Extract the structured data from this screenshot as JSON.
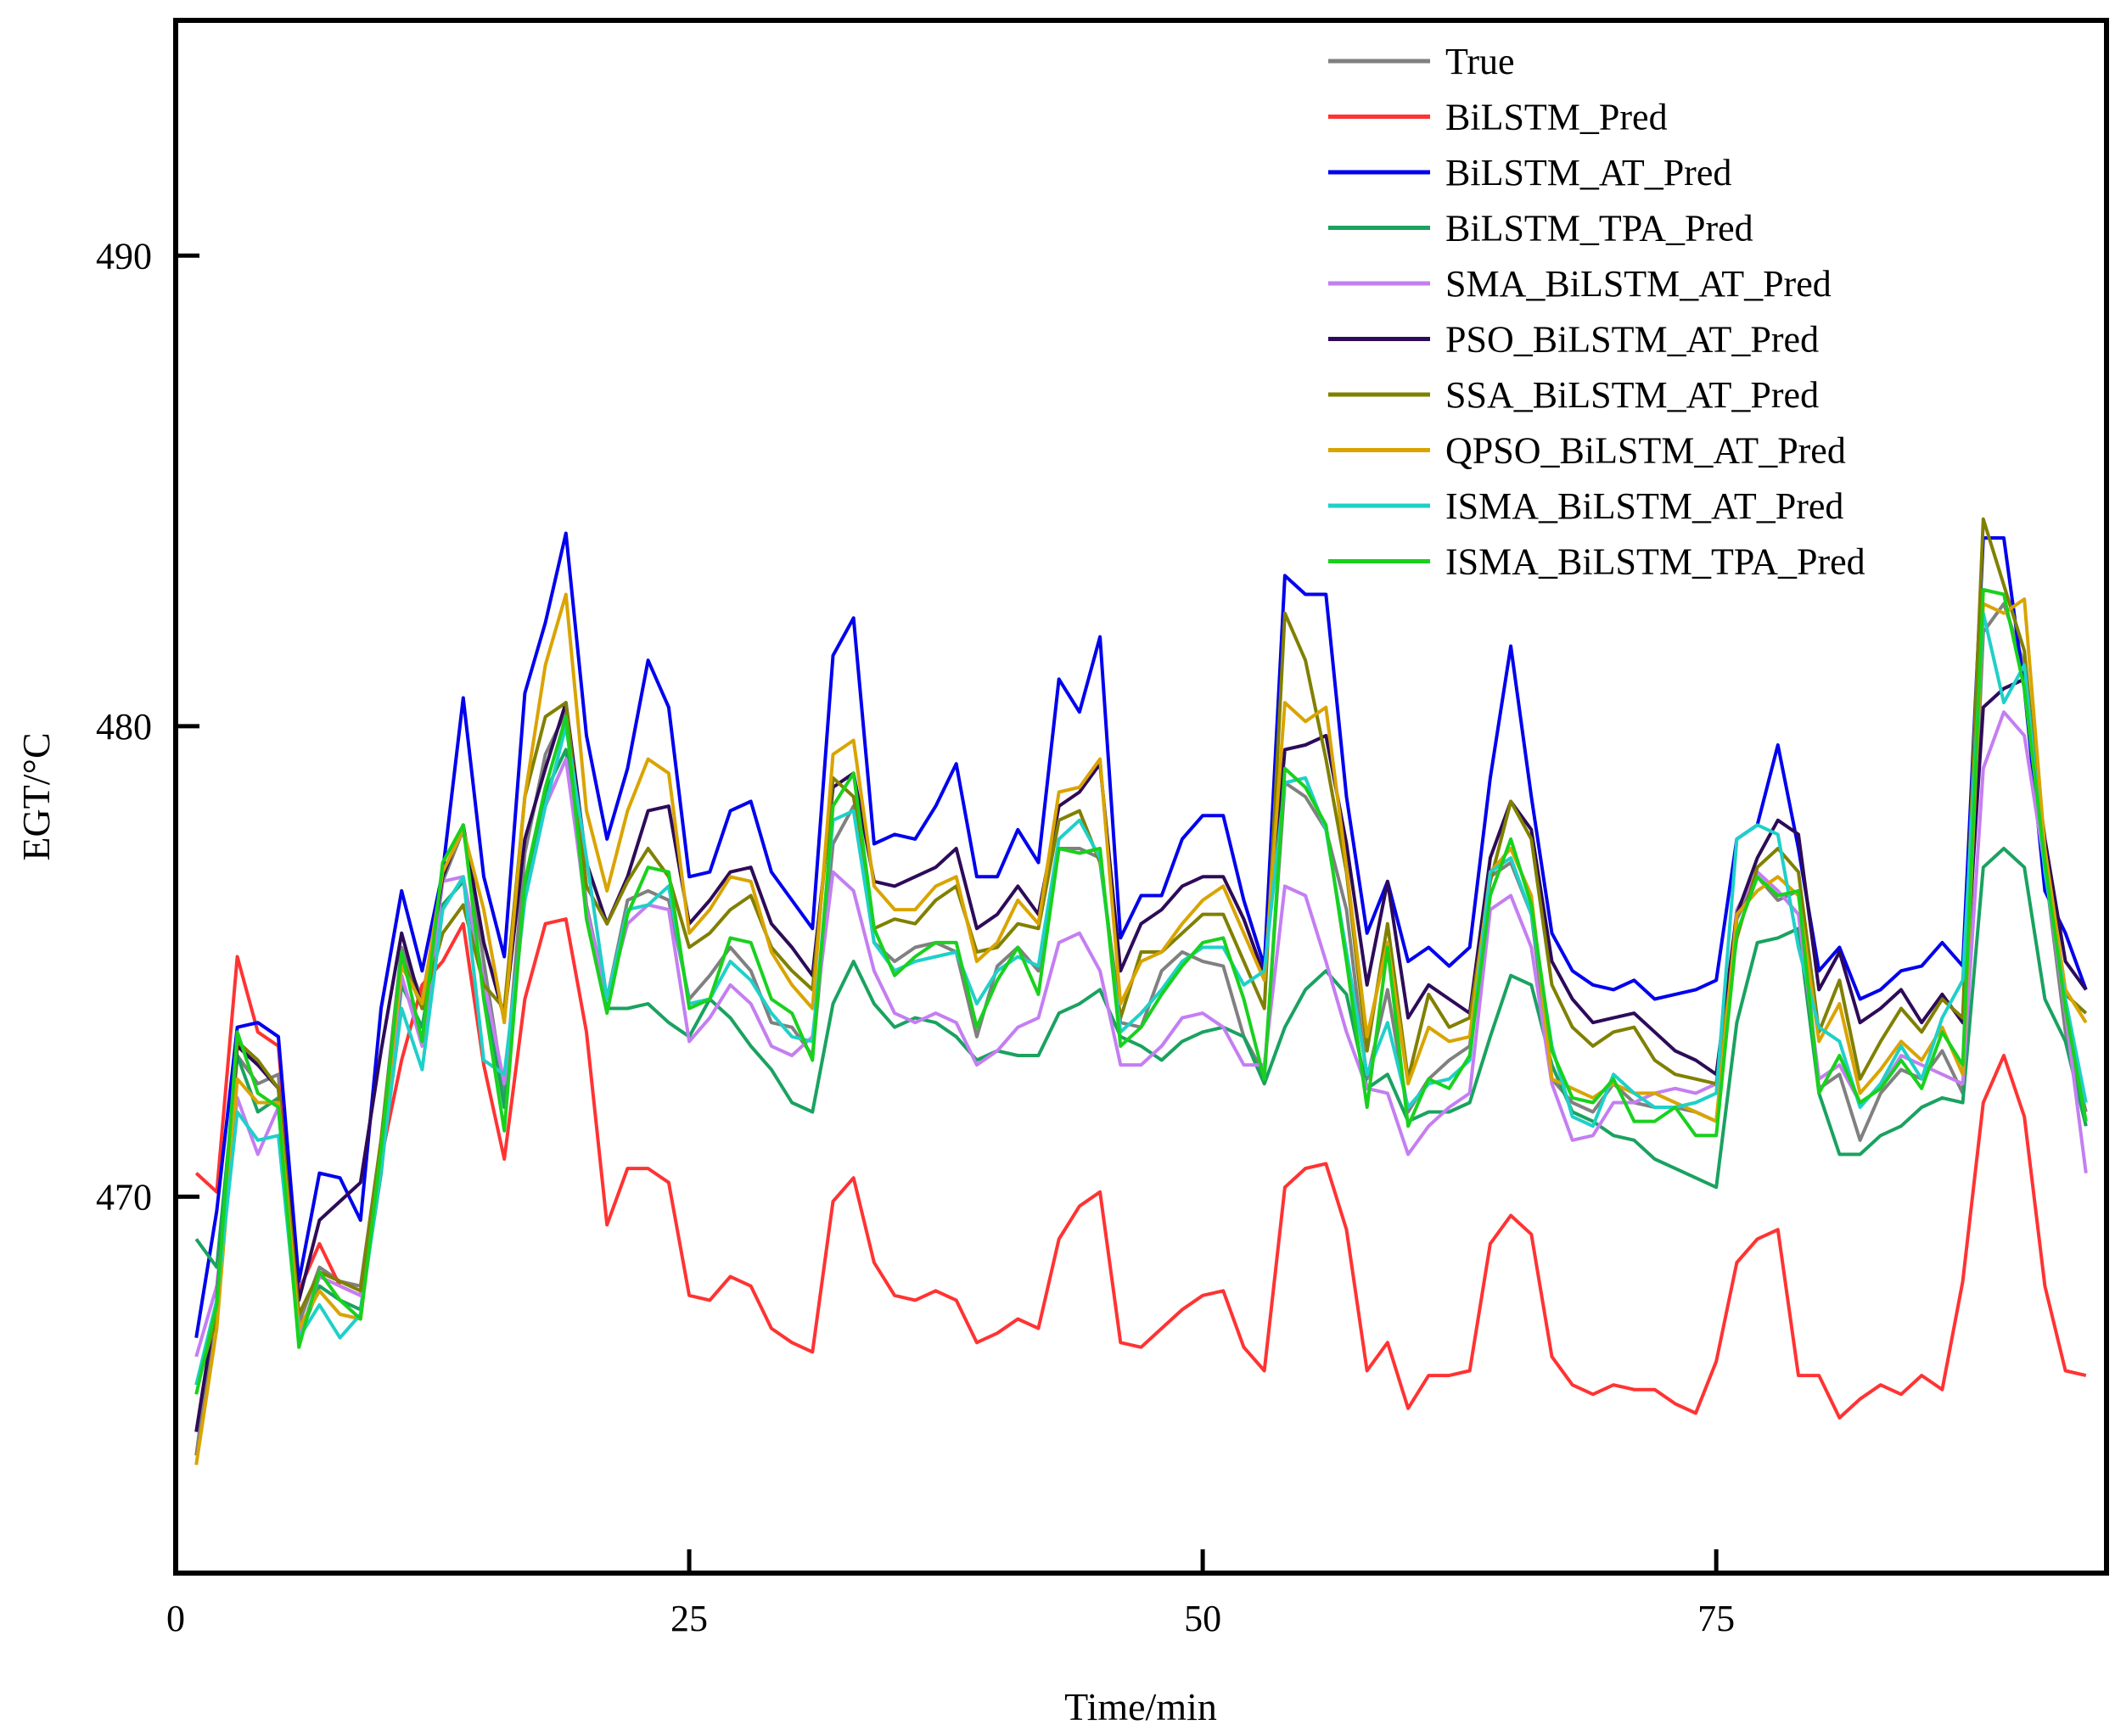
{
  "chart_data": {
    "type": "line",
    "title": "",
    "xlabel": "Time/min",
    "ylabel": "EGT/°C",
    "xlim": [
      0,
      94
    ],
    "ylim": [
      462,
      495
    ],
    "xticks": [
      0,
      25,
      50,
      75
    ],
    "yticks": [
      470,
      480,
      490
    ],
    "legend_position": "top-right",
    "x": [
      1,
      2,
      3,
      4,
      5,
      6,
      7,
      8,
      9,
      10,
      11,
      12,
      13,
      14,
      15,
      16,
      17,
      18,
      19,
      20,
      21,
      22,
      23,
      24,
      25,
      26,
      27,
      28,
      29,
      30,
      31,
      32,
      33,
      34,
      35,
      36,
      37,
      38,
      39,
      40,
      41,
      42,
      43,
      44,
      45,
      46,
      47,
      48,
      49,
      50,
      51,
      52,
      53,
      54,
      55,
      56,
      57,
      58,
      59,
      60,
      61,
      62,
      63,
      64,
      65,
      66,
      67,
      68,
      69,
      70,
      71,
      72,
      73,
      74,
      75,
      76,
      77,
      78,
      79,
      80,
      81,
      82,
      83,
      84,
      85,
      86,
      87,
      88,
      89,
      90,
      91,
      92,
      93
    ],
    "series": [
      {
        "name": "True",
        "color": "#808080",
        "values": [
          464.5,
          467.8,
          473.0,
          472.4,
          472.6,
          467.3,
          468.5,
          468.2,
          468.1,
          471.2,
          475.3,
          474.2,
          476.7,
          477.8,
          475.0,
          472.2,
          477.3,
          479.4,
          480.3,
          476.2,
          474.2,
          476.3,
          476.5,
          476.3,
          474.2,
          474.7,
          475.3,
          474.8,
          473.7,
          473.6,
          473.0,
          477.5,
          478.3,
          475.4,
          475.0,
          475.3,
          475.4,
          475.2,
          473.4,
          474.9,
          475.3,
          474.8,
          477.4,
          477.4,
          477.2,
          473.7,
          473.6,
          474.8,
          475.2,
          475.0,
          474.9,
          473.4,
          472.6,
          478.8,
          478.5,
          477.8,
          476.1,
          472.5,
          474.4,
          471.8,
          472.5,
          472.9,
          473.2,
          476.8,
          477.1,
          476.0,
          472.5,
          472.0,
          471.8,
          472.4,
          472.0,
          471.9,
          471.9,
          471.8,
          471.6,
          475.9,
          476.8,
          476.3,
          476.5,
          472.3,
          472.6,
          471.2,
          472.2,
          472.7,
          472.5,
          473.1,
          472.2,
          482.0,
          482.6,
          481.3,
          477.0,
          473.5,
          471.8
        ]
      },
      {
        "name": "BiLSTM_Pred",
        "color": "#ff3333",
        "values": [
          470.5,
          470.1,
          475.1,
          473.5,
          473.2,
          468.0,
          469.0,
          468.1,
          467.9,
          470.8,
          472.9,
          474.5,
          475.0,
          475.8,
          472.8,
          470.8,
          474.2,
          475.8,
          475.9,
          473.5,
          469.4,
          470.6,
          470.6,
          470.3,
          467.9,
          467.8,
          468.3,
          468.1,
          467.2,
          466.9,
          466.7,
          469.9,
          470.4,
          468.6,
          467.9,
          467.8,
          468.0,
          467.8,
          466.9,
          467.1,
          467.4,
          467.2,
          469.1,
          469.8,
          470.1,
          466.9,
          466.8,
          467.2,
          467.6,
          467.9,
          468.0,
          466.8,
          466.3,
          470.2,
          470.6,
          470.7,
          469.3,
          466.3,
          466.9,
          465.5,
          466.2,
          466.2,
          466.3,
          469.0,
          469.6,
          469.2,
          466.6,
          466.0,
          465.8,
          466.0,
          465.9,
          465.9,
          465.6,
          465.4,
          466.5,
          468.6,
          469.1,
          469.3,
          466.2,
          466.2,
          465.3,
          465.7,
          466.0,
          465.8,
          466.2,
          465.9,
          468.2,
          472.0,
          473.0,
          471.7,
          468.1,
          466.3,
          466.2
        ]
      },
      {
        "name": "BiLSTM_AT_Pred",
        "color": "#0000ee",
        "values": [
          467.0,
          469.7,
          473.6,
          473.7,
          473.4,
          468.2,
          470.5,
          470.4,
          469.5,
          474.0,
          476.5,
          474.8,
          476.9,
          480.6,
          476.8,
          475.1,
          480.7,
          482.2,
          484.1,
          479.8,
          477.6,
          479.1,
          481.4,
          480.4,
          476.8,
          476.9,
          478.2,
          478.4,
          476.9,
          476.3,
          475.7,
          481.5,
          482.3,
          477.5,
          477.7,
          477.6,
          478.3,
          479.2,
          476.8,
          476.8,
          477.8,
          477.1,
          481.0,
          480.3,
          481.9,
          475.5,
          476.4,
          476.4,
          477.6,
          478.1,
          478.1,
          476.3,
          474.9,
          483.2,
          482.8,
          482.8,
          478.5,
          475.6,
          476.7,
          475.0,
          475.3,
          474.9,
          475.3,
          478.9,
          481.7,
          478.5,
          475.6,
          474.8,
          474.5,
          474.4,
          474.6,
          474.2,
          474.3,
          474.4,
          474.6,
          477.6,
          477.9,
          479.6,
          477.4,
          474.8,
          475.3,
          474.2,
          474.4,
          474.8,
          474.9,
          475.4,
          474.9,
          484.0,
          484.0,
          480.8,
          476.5,
          475.6,
          474.4
        ]
      },
      {
        "name": "BiLSTM_TPA_Pred",
        "color": "#1aa260",
        "values": [
          469.1,
          468.5,
          473.0,
          471.8,
          472.1,
          467.0,
          468.1,
          467.8,
          467.6,
          470.5,
          474.5,
          473.6,
          476.2,
          476.7,
          474.6,
          471.9,
          476.5,
          478.6,
          479.5,
          476.0,
          474.0,
          474.0,
          474.1,
          473.7,
          473.4,
          474.2,
          473.8,
          473.2,
          472.7,
          472.0,
          471.8,
          474.1,
          475.0,
          474.1,
          473.6,
          473.8,
          473.7,
          473.4,
          472.9,
          473.1,
          473.0,
          473.0,
          473.9,
          474.1,
          474.4,
          473.4,
          473.2,
          472.9,
          473.3,
          473.5,
          473.6,
          473.4,
          472.4,
          473.6,
          474.4,
          474.8,
          474.3,
          472.3,
          472.6,
          471.6,
          471.8,
          471.8,
          472.0,
          473.4,
          474.7,
          474.5,
          472.8,
          471.8,
          471.6,
          471.3,
          471.2,
          470.8,
          470.6,
          470.4,
          470.2,
          473.7,
          475.4,
          475.5,
          475.7,
          472.2,
          470.9,
          470.9,
          471.3,
          471.5,
          471.9,
          472.1,
          472.0,
          477.0,
          477.4,
          477.0,
          474.2,
          473.3,
          471.5
        ]
      },
      {
        "name": "SMA_BiLSTM_AT_Pred",
        "color": "#c47ef2",
        "values": [
          466.6,
          468.1,
          472.1,
          470.9,
          471.9,
          467.0,
          468.3,
          468.1,
          467.9,
          470.8,
          474.7,
          473.2,
          476.7,
          476.8,
          474.6,
          472.4,
          476.3,
          478.3,
          479.3,
          476.1,
          474.2,
          475.8,
          476.2,
          476.1,
          473.3,
          473.8,
          474.5,
          474.1,
          473.2,
          473.0,
          473.4,
          476.9,
          476.5,
          474.8,
          473.9,
          473.7,
          473.9,
          473.7,
          472.8,
          473.1,
          473.6,
          473.8,
          475.4,
          475.6,
          474.8,
          472.8,
          472.8,
          473.2,
          473.8,
          473.9,
          473.6,
          472.8,
          472.8,
          476.6,
          476.4,
          475.0,
          473.5,
          472.3,
          472.2,
          470.9,
          471.5,
          471.9,
          472.2,
          476.1,
          476.4,
          475.3,
          472.4,
          471.2,
          471.3,
          472.0,
          472.0,
          472.2,
          472.3,
          472.2,
          472.4,
          476.1,
          476.9,
          476.5,
          476.0,
          472.5,
          472.8,
          472.0,
          472.3,
          473.0,
          472.8,
          472.6,
          472.4,
          479.1,
          480.3,
          479.8,
          477.0,
          473.9,
          470.5
        ]
      },
      {
        "name": "PSO_BiLSTM_AT_Pred",
        "color": "#2d0b59",
        "values": [
          465.0,
          467.8,
          473.2,
          472.8,
          472.3,
          467.8,
          469.5,
          469.9,
          470.3,
          473.1,
          475.6,
          474.0,
          476.8,
          477.9,
          475.4,
          473.8,
          477.6,
          479.1,
          480.5,
          477.1,
          475.8,
          476.8,
          478.2,
          478.3,
          475.8,
          476.3,
          476.9,
          477.0,
          475.8,
          475.3,
          474.7,
          478.7,
          479.0,
          476.7,
          476.6,
          476.8,
          477.0,
          477.4,
          475.7,
          476.0,
          476.6,
          476.0,
          478.3,
          478.6,
          479.2,
          474.8,
          475.8,
          476.1,
          476.6,
          476.8,
          476.8,
          475.9,
          474.7,
          479.5,
          479.6,
          479.8,
          477.5,
          474.5,
          476.7,
          473.8,
          474.5,
          474.2,
          473.9,
          477.2,
          478.4,
          477.8,
          475.0,
          474.2,
          473.7,
          473.8,
          473.9,
          473.5,
          473.1,
          472.9,
          472.6,
          476.0,
          477.2,
          478.0,
          477.7,
          474.4,
          475.2,
          473.7,
          474.0,
          474.4,
          473.7,
          474.3,
          473.7,
          480.4,
          480.8,
          481.0,
          477.6,
          475.0,
          474.4
        ]
      },
      {
        "name": "SSA_BiLSTM_AT_Pred",
        "color": "#808000",
        "values": [
          466.0,
          467.4,
          473.3,
          472.9,
          472.3,
          467.5,
          468.4,
          468.2,
          468.0,
          471.2,
          475.1,
          474.0,
          475.6,
          476.2,
          474.5,
          474.0,
          478.5,
          480.2,
          480.5,
          476.6,
          475.8,
          476.7,
          477.4,
          476.8,
          475.3,
          475.6,
          476.1,
          476.4,
          475.3,
          474.8,
          474.4,
          478.9,
          478.5,
          475.7,
          475.9,
          475.8,
          476.3,
          476.6,
          475.2,
          475.3,
          475.8,
          475.7,
          478.0,
          478.2,
          477.1,
          473.8,
          475.2,
          475.2,
          475.6,
          476.0,
          476.0,
          475.0,
          474.0,
          482.4,
          481.4,
          479.3,
          476.9,
          473.1,
          475.8,
          472.5,
          474.3,
          473.6,
          473.8,
          476.7,
          478.4,
          477.6,
          474.5,
          473.6,
          473.2,
          473.5,
          473.6,
          472.9,
          472.6,
          472.5,
          472.4,
          475.5,
          477.0,
          477.4,
          476.9,
          473.5,
          474.6,
          472.5,
          473.3,
          474.0,
          473.5,
          474.2,
          473.8,
          484.4,
          483.0,
          481.6,
          477.1,
          474.3,
          473.9
        ]
      },
      {
        "name": "QPSO_BiLSTM_AT_Pred",
        "color": "#d9a400",
        "values": [
          464.3,
          467.2,
          472.5,
          472.0,
          472.0,
          467.2,
          468.0,
          467.5,
          467.4,
          470.9,
          474.9,
          474.1,
          476.9,
          477.8,
          476.1,
          473.7,
          478.5,
          481.3,
          482.8,
          478.2,
          476.5,
          478.2,
          479.3,
          479.0,
          475.6,
          476.1,
          476.8,
          476.7,
          475.2,
          474.5,
          474.0,
          479.4,
          479.7,
          476.6,
          476.1,
          476.1,
          476.6,
          476.8,
          475.0,
          475.4,
          476.3,
          475.8,
          478.6,
          478.7,
          479.3,
          474.1,
          475.0,
          475.2,
          475.8,
          476.3,
          476.6,
          475.6,
          474.6,
          480.5,
          480.1,
          480.4,
          477.0,
          473.4,
          475.4,
          472.4,
          473.6,
          473.3,
          473.4,
          476.9,
          477.4,
          476.4,
          472.5,
          472.3,
          472.1,
          472.4,
          472.2,
          472.2,
          472.0,
          471.8,
          471.6,
          476.0,
          476.5,
          476.8,
          476.4,
          473.3,
          474.1,
          472.2,
          472.7,
          473.3,
          472.9,
          473.6,
          472.6,
          482.6,
          482.4,
          482.7,
          477.4,
          474.4,
          473.7
        ]
      },
      {
        "name": "ISMA_BiLSTM_AT_Pred",
        "color": "#1fd0c8",
        "values": [
          466.0,
          467.8,
          471.8,
          471.2,
          471.3,
          467.0,
          467.7,
          467.0,
          467.5,
          470.6,
          474.0,
          472.7,
          476.1,
          476.8,
          472.9,
          472.6,
          476.3,
          478.3,
          480.0,
          477.2,
          474.2,
          476.1,
          476.2,
          476.6,
          474.1,
          474.2,
          475.0,
          474.6,
          473.9,
          473.4,
          473.3,
          478.0,
          478.2,
          475.4,
          474.8,
          475.0,
          475.1,
          475.2,
          474.1,
          474.8,
          475.1,
          474.9,
          477.6,
          478.0,
          477.2,
          473.5,
          473.9,
          474.4,
          475.0,
          475.3,
          475.3,
          474.5,
          474.8,
          478.8,
          478.9,
          477.8,
          475.2,
          472.6,
          473.7,
          471.9,
          472.4,
          472.5,
          472.9,
          476.9,
          477.2,
          476.0,
          473.2,
          471.7,
          471.5,
          472.6,
          472.2,
          471.9,
          471.9,
          472.0,
          472.2,
          477.6,
          477.9,
          477.7,
          475.3,
          473.6,
          473.3,
          471.9,
          472.4,
          473.2,
          472.5,
          473.8,
          474.6,
          482.4,
          480.5,
          481.3,
          476.9,
          474.2,
          472.0
        ]
      },
      {
        "name": "ISMA_BiLSTM_TPA_Pred",
        "color": "#19d11d",
        "values": [
          465.8,
          467.7,
          473.5,
          472.2,
          471.9,
          466.8,
          468.4,
          467.8,
          467.4,
          471.0,
          475.2,
          473.3,
          477.1,
          477.9,
          474.2,
          471.4,
          476.7,
          478.7,
          480.2,
          475.9,
          473.9,
          476.0,
          477.0,
          476.9,
          474.0,
          474.2,
          475.5,
          475.4,
          474.2,
          473.9,
          472.9,
          478.3,
          479.0,
          475.7,
          474.7,
          475.1,
          475.4,
          475.4,
          473.6,
          474.6,
          475.3,
          474.3,
          477.4,
          477.3,
          477.4,
          473.2,
          473.6,
          474.3,
          474.9,
          475.4,
          475.5,
          474.2,
          472.5,
          479.1,
          478.7,
          477.9,
          475.0,
          471.9,
          475.3,
          471.5,
          472.5,
          472.3,
          473.0,
          476.4,
          477.6,
          476.2,
          473.1,
          472.1,
          472.0,
          472.5,
          471.6,
          471.6,
          471.9,
          471.3,
          471.3,
          475.6,
          476.8,
          476.4,
          476.5,
          472.2,
          473.0,
          472.0,
          472.3,
          472.9,
          472.3,
          473.5,
          472.8,
          482.9,
          482.8,
          480.8,
          477.1,
          474.0,
          471.6
        ]
      }
    ]
  }
}
